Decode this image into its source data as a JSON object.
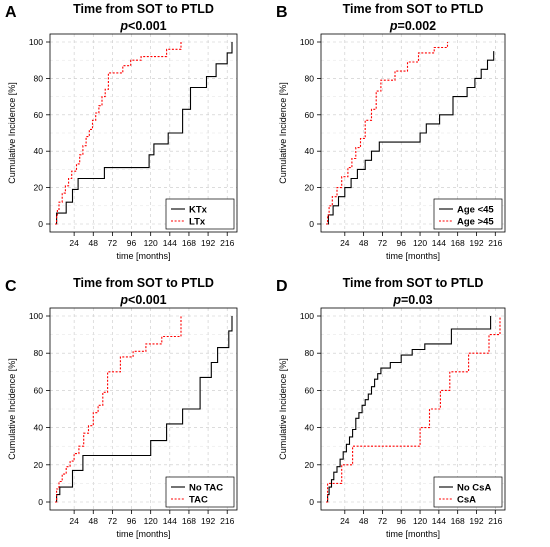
{
  "chart_data": [
    {
      "type": "step",
      "panel_label": "A",
      "title": "Time from SOT to PTLD",
      "p_prefix": "p",
      "p_suffix": "<0.001",
      "xlabel": "time [months]",
      "ylabel": "Cumulative Incidence [%]",
      "xlim": [
        0,
        222
      ],
      "ylim": [
        0,
        100
      ],
      "xticks": [
        24,
        48,
        72,
        96,
        120,
        144,
        168,
        192,
        216
      ],
      "yticks": [
        0,
        20,
        40,
        60,
        80,
        100
      ],
      "grid": true,
      "legend_position": "bottom-right",
      "series": [
        {
          "name": "KTx",
          "color": "#000000",
          "dash": "solid",
          "x": [
            0,
            2,
            14,
            22,
            29,
            62,
            118,
            124,
            142,
            160,
            170,
            190,
            202,
            216,
            222
          ],
          "y": [
            0,
            6,
            12,
            19,
            25,
            31,
            38,
            44,
            50,
            63,
            75,
            81,
            88,
            94,
            100
          ]
        },
        {
          "name": "LTx",
          "color": "#ff0000",
          "dash": "dotted",
          "x": [
            0,
            2,
            3,
            5,
            9,
            13,
            17,
            21,
            27,
            31,
            35,
            39,
            43,
            47,
            51,
            55,
            59,
            63,
            67,
            75,
            85,
            95,
            108,
            140,
            158
          ],
          "y": [
            0,
            4,
            8,
            12,
            17,
            21,
            25,
            29,
            33,
            38,
            43,
            48,
            52,
            57,
            61,
            65,
            70,
            74,
            83,
            83,
            87,
            90,
            92,
            96,
            100
          ]
        }
      ]
    },
    {
      "type": "step",
      "panel_label": "B",
      "title": "Time from SOT to PTLD",
      "p_prefix": "p",
      "p_suffix": "=0.002",
      "xlabel": "time [months]",
      "ylabel": "Cumulative Incidence [%]",
      "xlim": [
        0,
        222
      ],
      "ylim": [
        0,
        100
      ],
      "xticks": [
        24,
        48,
        72,
        96,
        120,
        144,
        168,
        192,
        216
      ],
      "yticks": [
        0,
        20,
        40,
        60,
        80,
        100
      ],
      "grid": true,
      "legend_position": "bottom-right",
      "series": [
        {
          "name": "Age <45",
          "color": "#000000",
          "dash": "solid",
          "x": [
            0,
            3,
            9,
            16,
            24,
            32,
            40,
            50,
            58,
            68,
            120,
            128,
            145,
            162,
            180,
            190,
            198,
            206,
            214
          ],
          "y": [
            0,
            5,
            10,
            15,
            20,
            25,
            30,
            35,
            40,
            45,
            50,
            55,
            60,
            70,
            75,
            80,
            85,
            90,
            95
          ]
        },
        {
          "name": "Age >45",
          "color": "#ff0000",
          "dash": "dotted",
          "x": [
            0,
            2,
            4,
            8,
            14,
            20,
            28,
            33,
            38,
            44,
            50,
            58,
            64,
            70,
            88,
            104,
            118,
            138,
            155
          ],
          "y": [
            0,
            5,
            10,
            15,
            20,
            26,
            31,
            36,
            42,
            47,
            57,
            63,
            73,
            79,
            84,
            89,
            94,
            97,
            100
          ]
        }
      ]
    },
    {
      "type": "step",
      "panel_label": "C",
      "title": "Time from SOT to PTLD",
      "p_prefix": "p",
      "p_suffix": "<0.001",
      "xlabel": "time [months]",
      "ylabel": "Cumulative Incidence [%]",
      "xlim": [
        0,
        222
      ],
      "ylim": [
        0,
        100
      ],
      "xticks": [
        24,
        48,
        72,
        96,
        120,
        144,
        168,
        192,
        216
      ],
      "yticks": [
        0,
        20,
        40,
        60,
        80,
        100
      ],
      "grid": true,
      "legend_position": "bottom-right",
      "series": [
        {
          "name": "No TAC",
          "color": "#000000",
          "dash": "solid",
          "x": [
            0,
            2,
            6,
            22,
            35,
            120,
            140,
            160,
            182,
            196,
            204,
            218,
            222
          ],
          "y": [
            0,
            4,
            8,
            17,
            25,
            33,
            42,
            50,
            67,
            75,
            83,
            92,
            100
          ]
        },
        {
          "name": "TAC",
          "color": "#ff0000",
          "dash": "dotted",
          "x": [
            0,
            2,
            5,
            9,
            14,
            19,
            24,
            30,
            36,
            42,
            48,
            54,
            60,
            66,
            82,
            98,
            114,
            134,
            158
          ],
          "y": [
            0,
            7,
            11,
            15,
            19,
            22,
            26,
            30,
            37,
            41,
            48,
            52,
            59,
            70,
            78,
            81,
            85,
            89,
            100
          ]
        }
      ]
    },
    {
      "type": "step",
      "panel_label": "D",
      "title": "Time from SOT to PTLD",
      "p_prefix": "p",
      "p_suffix": "=0.03",
      "xlabel": "time [months]",
      "ylabel": "Cumulative Incidence [%]",
      "xlim": [
        0,
        222
      ],
      "ylim": [
        0,
        100
      ],
      "xticks": [
        24,
        48,
        72,
        96,
        120,
        144,
        168,
        192,
        216
      ],
      "yticks": [
        0,
        20,
        40,
        60,
        80,
        100
      ],
      "grid": true,
      "legend_position": "bottom-right",
      "series": [
        {
          "name": "No CsA",
          "color": "#000000",
          "dash": "solid",
          "x": [
            0,
            2,
            4,
            7,
            10,
            14,
            18,
            22,
            26,
            30,
            34,
            38,
            42,
            46,
            50,
            54,
            58,
            62,
            66,
            70,
            82,
            96,
            110,
            126,
            160,
            210
          ],
          "y": [
            0,
            4,
            8,
            12,
            16,
            19,
            23,
            27,
            31,
            35,
            39,
            45,
            48,
            52,
            55,
            58,
            62,
            66,
            69,
            72,
            75,
            79,
            82,
            85,
            93,
            100
          ]
        },
        {
          "name": "CsA",
          "color": "#ff0000",
          "dash": "dotted",
          "x": [
            0,
            2,
            20,
            34,
            120,
            132,
            146,
            158,
            182,
            208,
            222
          ],
          "y": [
            0,
            10,
            20,
            30,
            40,
            50,
            60,
            70,
            80,
            90,
            100
          ]
        }
      ]
    }
  ]
}
